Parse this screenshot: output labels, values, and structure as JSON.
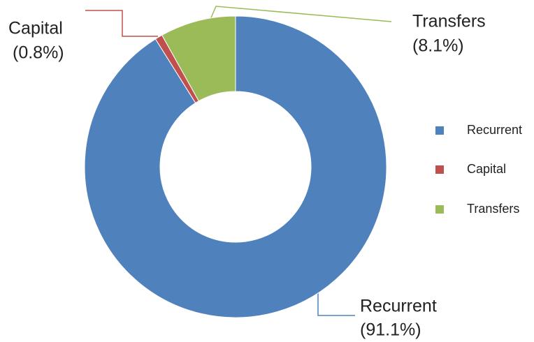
{
  "chart_data": {
    "type": "donut",
    "categories": [
      "Recurrent",
      "Capital",
      "Transfers"
    ],
    "values": [
      91.1,
      0.8,
      8.1
    ],
    "value_labels": [
      "(91.1%)",
      "(0.8%)",
      "(8.1%)"
    ],
    "colors": [
      "#4f81bd",
      "#c0504d",
      "#9bbb59"
    ],
    "legend": "right"
  }
}
